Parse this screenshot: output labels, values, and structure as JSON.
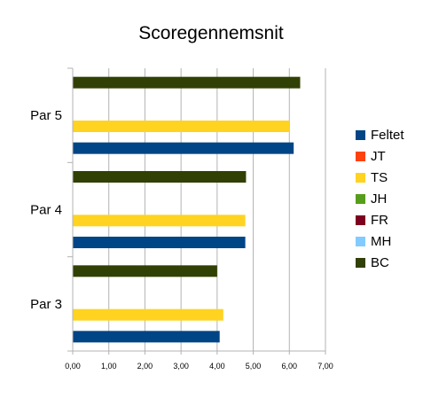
{
  "chart_data": {
    "type": "bar",
    "orientation": "horizontal",
    "title": "Scoregennemsnit",
    "xlabel": "",
    "ylabel": "",
    "xlim": [
      0,
      7
    ],
    "x_ticks": [
      "0,00",
      "1,00",
      "2,00",
      "3,00",
      "4,00",
      "5,00",
      "6,00",
      "7,00"
    ],
    "grid": true,
    "legend_position": "right",
    "categories": [
      "Par 3",
      "Par 4",
      "Par 5"
    ],
    "series": [
      {
        "name": "Feltet",
        "color": "#004586",
        "values": [
          4.07,
          4.78,
          6.12
        ]
      },
      {
        "name": "JT",
        "color": "#ff420e",
        "values": [
          null,
          null,
          null
        ]
      },
      {
        "name": "TS",
        "color": "#ffd320",
        "values": [
          4.17,
          4.78,
          6.0
        ]
      },
      {
        "name": "JH",
        "color": "#579d1c",
        "values": [
          null,
          null,
          null
        ]
      },
      {
        "name": "FR",
        "color": "#7e0021",
        "values": [
          null,
          null,
          null
        ]
      },
      {
        "name": "MH",
        "color": "#83caff",
        "values": [
          null,
          null,
          null
        ]
      },
      {
        "name": "BC",
        "color": "#314004",
        "values": [
          4.0,
          4.8,
          6.3
        ]
      }
    ]
  }
}
